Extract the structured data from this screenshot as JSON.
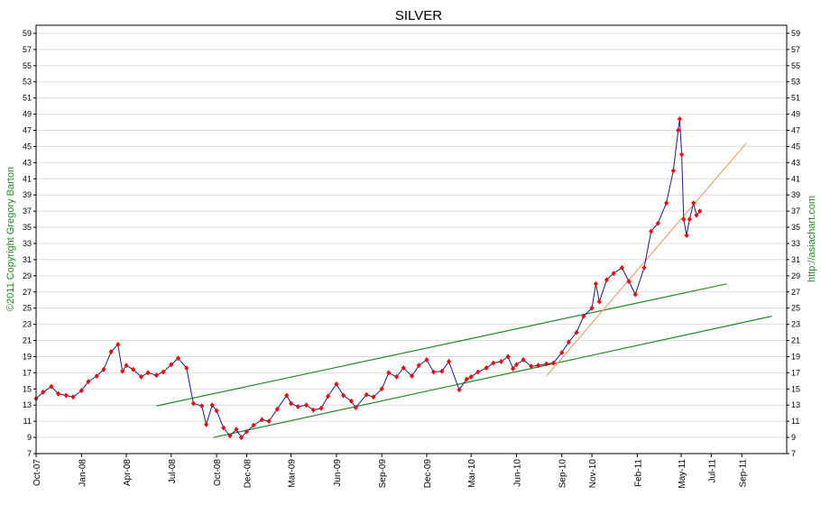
{
  "chart_data": {
    "type": "line",
    "title": "SILVER",
    "side_label_left": "©2011 Copyright Gregory Barton",
    "side_label_right": "http://asiachart.com",
    "ylim": [
      7,
      60
    ],
    "y_ticks": [
      7,
      9,
      11,
      13,
      15,
      17,
      19,
      21,
      23,
      25,
      27,
      29,
      31,
      33,
      35,
      37,
      39,
      41,
      43,
      45,
      47,
      49,
      51,
      53,
      55,
      57,
      59
    ],
    "grid": true,
    "x_ticks": [
      "Oct-07",
      "Jan-08",
      "Apr-08",
      "Jul-08",
      "Oct-08",
      "Dec-08",
      "Mar-09",
      "Jun-09",
      "Sep-09",
      "Dec-09",
      "Mar-10",
      "Jun-10",
      "Sep-10",
      "Nov-10",
      "Feb-11",
      "May-11",
      "Jul-11",
      "Sep-11"
    ],
    "x_tick_dates": [
      "2007-10-01",
      "2008-01-01",
      "2008-04-01",
      "2008-07-01",
      "2008-10-01",
      "2008-12-01",
      "2009-03-01",
      "2009-06-01",
      "2009-09-01",
      "2009-12-01",
      "2010-03-01",
      "2010-06-01",
      "2010-09-01",
      "2010-11-01",
      "2011-02-01",
      "2011-05-01",
      "2011-07-01",
      "2011-09-01"
    ],
    "series": [
      {
        "type": "line",
        "color": "#1a1a8c",
        "marker_color": "#ff0000",
        "points": [
          [
            "2007-10-01",
            13.8
          ],
          [
            "2007-10-15",
            14.6
          ],
          [
            "2007-11-01",
            15.3
          ],
          [
            "2007-11-15",
            14.4
          ],
          [
            "2007-12-01",
            14.2
          ],
          [
            "2007-12-15",
            14.0
          ],
          [
            "2008-01-01",
            14.8
          ],
          [
            "2008-01-15",
            15.9
          ],
          [
            "2008-02-01",
            16.6
          ],
          [
            "2008-02-15",
            17.4
          ],
          [
            "2008-03-01",
            19.6
          ],
          [
            "2008-03-15",
            20.5
          ],
          [
            "2008-03-24",
            17.2
          ],
          [
            "2008-04-01",
            17.9
          ],
          [
            "2008-04-15",
            17.4
          ],
          [
            "2008-05-01",
            16.5
          ],
          [
            "2008-05-15",
            17.0
          ],
          [
            "2008-06-01",
            16.7
          ],
          [
            "2008-06-15",
            17.1
          ],
          [
            "2008-07-01",
            18.0
          ],
          [
            "2008-07-15",
            18.8
          ],
          [
            "2008-08-01",
            17.6
          ],
          [
            "2008-08-15",
            13.2
          ],
          [
            "2008-09-01",
            12.9
          ],
          [
            "2008-09-10",
            10.6
          ],
          [
            "2008-09-22",
            13.0
          ],
          [
            "2008-10-01",
            12.3
          ],
          [
            "2008-10-15",
            10.2
          ],
          [
            "2008-10-28",
            9.2
          ],
          [
            "2008-11-10",
            10.0
          ],
          [
            "2008-11-20",
            9.0
          ],
          [
            "2008-12-01",
            9.7
          ],
          [
            "2008-12-15",
            10.5
          ],
          [
            "2009-01-01",
            11.2
          ],
          [
            "2009-01-15",
            11.0
          ],
          [
            "2009-02-01",
            12.5
          ],
          [
            "2009-02-20",
            14.2
          ],
          [
            "2009-03-01",
            13.2
          ],
          [
            "2009-03-15",
            12.8
          ],
          [
            "2009-04-01",
            13.0
          ],
          [
            "2009-04-15",
            12.4
          ],
          [
            "2009-05-01",
            12.6
          ],
          [
            "2009-05-15",
            14.1
          ],
          [
            "2009-06-01",
            15.6
          ],
          [
            "2009-06-15",
            14.2
          ],
          [
            "2009-07-01",
            13.5
          ],
          [
            "2009-07-10",
            12.7
          ],
          [
            "2009-08-01",
            14.3
          ],
          [
            "2009-08-15",
            14.0
          ],
          [
            "2009-09-01",
            15.0
          ],
          [
            "2009-09-15",
            17.0
          ],
          [
            "2009-10-01",
            16.5
          ],
          [
            "2009-10-15",
            17.6
          ],
          [
            "2009-11-01",
            16.6
          ],
          [
            "2009-11-15",
            17.9
          ],
          [
            "2009-12-01",
            18.6
          ],
          [
            "2009-12-15",
            17.1
          ],
          [
            "2010-01-01",
            17.2
          ],
          [
            "2010-01-15",
            18.4
          ],
          [
            "2010-02-05",
            14.9
          ],
          [
            "2010-02-20",
            16.2
          ],
          [
            "2010-03-01",
            16.5
          ],
          [
            "2010-03-15",
            17.1
          ],
          [
            "2010-04-01",
            17.6
          ],
          [
            "2010-04-15",
            18.2
          ],
          [
            "2010-05-01",
            18.4
          ],
          [
            "2010-05-15",
            19.0
          ],
          [
            "2010-05-25",
            17.5
          ],
          [
            "2010-06-01",
            18.0
          ],
          [
            "2010-06-15",
            18.6
          ],
          [
            "2010-07-01",
            17.8
          ],
          [
            "2010-07-15",
            17.9
          ],
          [
            "2010-08-01",
            18.1
          ],
          [
            "2010-08-15",
            18.2
          ],
          [
            "2010-09-01",
            19.5
          ],
          [
            "2010-09-15",
            20.8
          ],
          [
            "2010-10-01",
            22.0
          ],
          [
            "2010-10-15",
            24.0
          ],
          [
            "2010-11-01",
            25.0
          ],
          [
            "2010-11-09",
            28.0
          ],
          [
            "2010-11-16",
            25.8
          ],
          [
            "2010-12-01",
            28.5
          ],
          [
            "2010-12-15",
            29.3
          ],
          [
            "2011-01-01",
            30.0
          ],
          [
            "2011-01-15",
            28.3
          ],
          [
            "2011-01-28",
            26.7
          ],
          [
            "2011-02-15",
            30.0
          ],
          [
            "2011-03-01",
            34.5
          ],
          [
            "2011-03-15",
            35.5
          ],
          [
            "2011-04-01",
            38.0
          ],
          [
            "2011-04-15",
            42.0
          ],
          [
            "2011-04-25",
            47.0
          ],
          [
            "2011-04-28",
            48.4
          ],
          [
            "2011-05-02",
            44.0
          ],
          [
            "2011-05-06",
            36.0
          ],
          [
            "2011-05-12",
            34.0
          ],
          [
            "2011-05-18",
            36.0
          ],
          [
            "2011-05-26",
            38.0
          ],
          [
            "2011-06-01",
            36.5
          ],
          [
            "2011-06-08",
            37.0
          ]
        ]
      },
      {
        "type": "trendline",
        "color": "#228b22",
        "points": [
          [
            "2008-06-01",
            12.9
          ],
          [
            "2011-08-01",
            28.0
          ]
        ]
      },
      {
        "type": "trendline",
        "color": "#228b22",
        "points": [
          [
            "2008-09-25",
            9.0
          ],
          [
            "2011-11-01",
            24.0
          ]
        ]
      },
      {
        "type": "trendline",
        "color": "#f4a070",
        "points": [
          [
            "2010-08-01",
            16.6
          ],
          [
            "2011-09-10",
            45.4
          ]
        ]
      }
    ]
  }
}
